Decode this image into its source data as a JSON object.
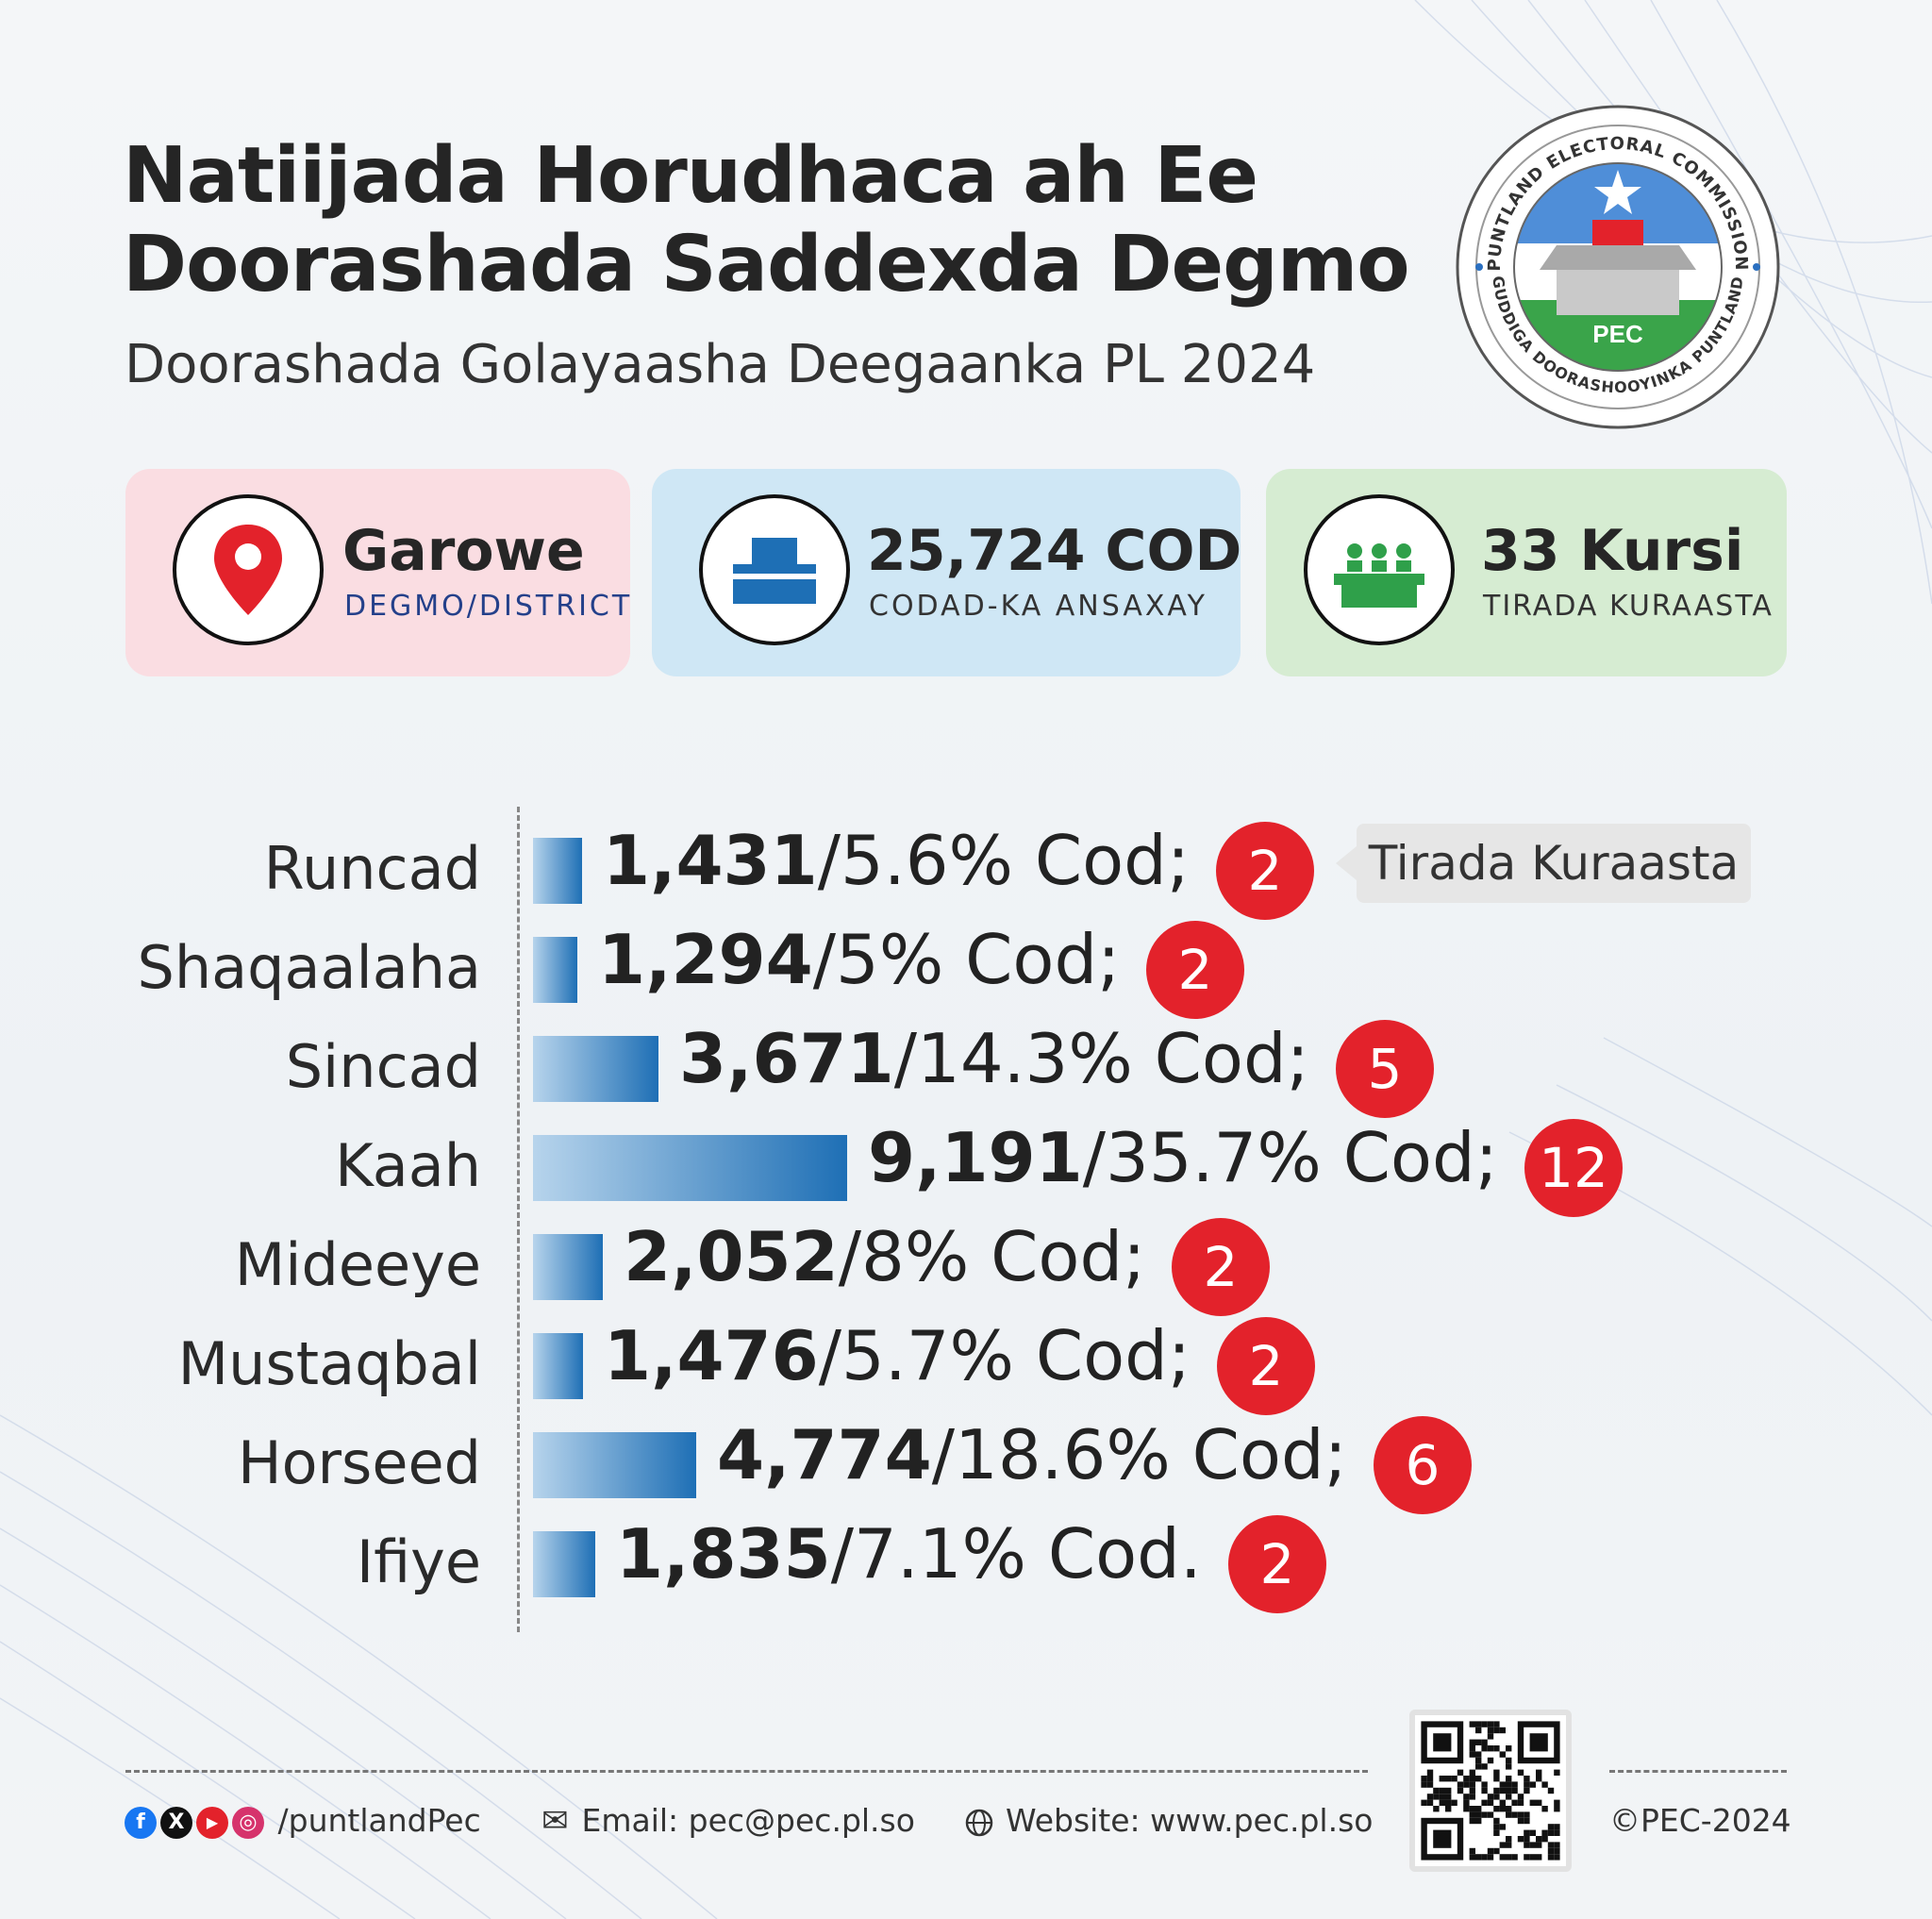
{
  "header": {
    "title_line1": "Natiijada Horudhaca ah Ee",
    "title_line2": "Doorashada Saddexda Degmo",
    "subtitle": "Doorashada Golayaasha Deegaanka PL 2024"
  },
  "logo": {
    "ring_top": "PUNTLAND ELECTORAL COMMISSION",
    "ring_bottom": "GUDDIGA DOORASHOOYINKA PUNTLAND",
    "acronym": "PEC"
  },
  "cards": [
    {
      "big": "Garowe",
      "small": "DEGMO/DISTRICT",
      "icon": "location-pin-icon",
      "bg": "#fadde2"
    },
    {
      "big": "25,724 COD",
      "small": "CODAD-KA ANSAXAY",
      "icon": "ballot-box-icon",
      "bg": "#cfe7f5"
    },
    {
      "big": "33 Kursi",
      "small": "TIRADA KURAASTA",
      "icon": "council-seats-icon",
      "bg": "#d6ecd2"
    }
  ],
  "tooltip": "Tirada Kuraasta",
  "chart_data": {
    "type": "bar",
    "orientation": "horizontal",
    "categories": [
      "Runcad",
      "Shaqaalaha",
      "Sincad",
      "Kaah",
      "Mideeye",
      "Mustaqbal",
      "Horseed",
      "Ifiye"
    ],
    "values": [
      1431,
      1294,
      3671,
      9191,
      2052,
      1476,
      4774,
      1835
    ],
    "value_labels": [
      "1,431",
      "1,294",
      "3,671",
      "9,191",
      "2,052",
      "1,476",
      "4,774",
      "1,835"
    ],
    "percent_labels": [
      "/5.6% Cod;",
      "/5% Cod;",
      "/14.3% Cod;",
      "/35.7% Cod;",
      "/8% Cod;",
      "/5.7% Cod;",
      "/18.6% Cod;",
      "/7.1% Cod."
    ],
    "seats": [
      "2",
      "2",
      "5",
      "12",
      "2",
      "2",
      "6",
      "2"
    ],
    "xlim": [
      0,
      9191
    ],
    "grid": false,
    "bar_color_start": "#b7d4ec",
    "bar_color_end": "#1e6fb5",
    "seat_color": "#e3222b"
  },
  "footer": {
    "social_handle": "/puntlandPec",
    "email": "Email: pec@pec.pl.so",
    "website": "Website: www.pec.pl.so",
    "copyright": "©PEC-2024",
    "social_icons": [
      "facebook-icon",
      "x-icon",
      "youtube-icon",
      "instagram-icon"
    ]
  }
}
